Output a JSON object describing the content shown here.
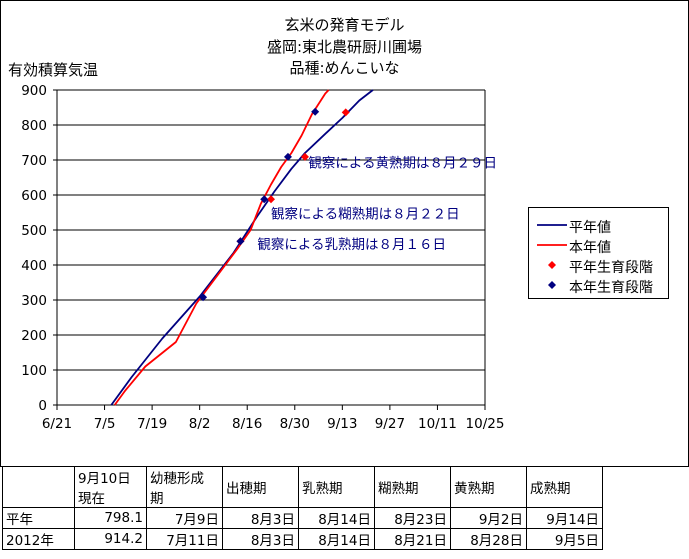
{
  "title_lines": [
    "玄米の発育モデル",
    "盛岡:東北農研厨川圃場",
    "品種:めんこいな"
  ],
  "chart_data": {
    "type": "line",
    "ylabel": "有効積算気温",
    "xlabel": "",
    "ylim": [
      0,
      900
    ],
    "yticks": [
      0,
      100,
      200,
      300,
      400,
      500,
      600,
      700,
      800,
      900
    ],
    "xlim": [
      "6/21",
      "10/25"
    ],
    "xticks": [
      "6/21",
      "7/5",
      "7/19",
      "8/2",
      "8/16",
      "8/30",
      "9/13",
      "9/27",
      "10/11",
      "10/25"
    ],
    "grid": "horizontal",
    "legend_position": "right",
    "series": [
      {
        "name": "平年値",
        "kind": "line",
        "color": "#000080",
        "points": [
          [
            "7/7",
            0
          ],
          [
            "7/13",
            80
          ],
          [
            "7/22",
            190
          ],
          [
            "8/2",
            310
          ],
          [
            "8/12",
            435
          ],
          [
            "8/19",
            540
          ],
          [
            "8/24",
            610
          ],
          [
            "8/29",
            675
          ],
          [
            "9/2",
            720
          ],
          [
            "9/8",
            775
          ],
          [
            "9/13",
            820
          ],
          [
            "9/18",
            870
          ],
          [
            "9/22",
            900
          ]
        ]
      },
      {
        "name": "本年値",
        "kind": "line",
        "color": "#ff0000",
        "points": [
          [
            "7/8",
            0
          ],
          [
            "7/11",
            40
          ],
          [
            "7/17",
            110
          ],
          [
            "7/26",
            180
          ],
          [
            "8/1",
            290
          ],
          [
            "8/8",
            380
          ],
          [
            "8/13",
            445
          ],
          [
            "8/17",
            500
          ],
          [
            "8/20",
            575
          ],
          [
            "8/23",
            630
          ],
          [
            "8/26",
            680
          ],
          [
            "8/29",
            720
          ],
          [
            "9/1",
            770
          ],
          [
            "9/4",
            830
          ],
          [
            "9/8",
            890
          ],
          [
            "9/9",
            900
          ]
        ]
      },
      {
        "name": "平年生育段階",
        "kind": "marker",
        "color": "#ff0000",
        "points": [
          [
            "8/14",
            468
          ],
          [
            "8/23",
            588
          ],
          [
            "9/2",
            709
          ],
          [
            "9/14",
            836
          ]
        ]
      },
      {
        "name": "本年生育段階",
        "kind": "marker",
        "color": "#000080",
        "points": [
          [
            "8/3",
            308
          ],
          [
            "8/14",
            468
          ],
          [
            "8/21",
            588
          ],
          [
            "8/28",
            709
          ],
          [
            "9/5",
            838
          ]
        ]
      }
    ],
    "annotations": [
      {
        "text": "観察による黄熟期は８月２９日",
        "x": "9/3",
        "y": 693
      },
      {
        "text": "観察による糊熟期は８月２２日",
        "x": "8/23",
        "y": 547
      },
      {
        "text": "観察による乳熟期は８月１６日",
        "x": "8/19",
        "y": 460
      }
    ]
  },
  "table": {
    "headers": [
      "",
      "9月10日\n現在",
      "幼穂形成\n期",
      "出穂期",
      "乳熟期",
      "糊熟期",
      "黄熟期",
      "成熟期"
    ],
    "rows": [
      [
        "平年",
        "798.1",
        "7月9日",
        "8月3日",
        "8月14日",
        "8月23日",
        "9月2日",
        "9月14日"
      ],
      [
        "2012年",
        "914.2",
        "7月11日",
        "8月3日",
        "8月14日",
        "8月21日",
        "8月28日",
        "9月5日"
      ]
    ]
  }
}
